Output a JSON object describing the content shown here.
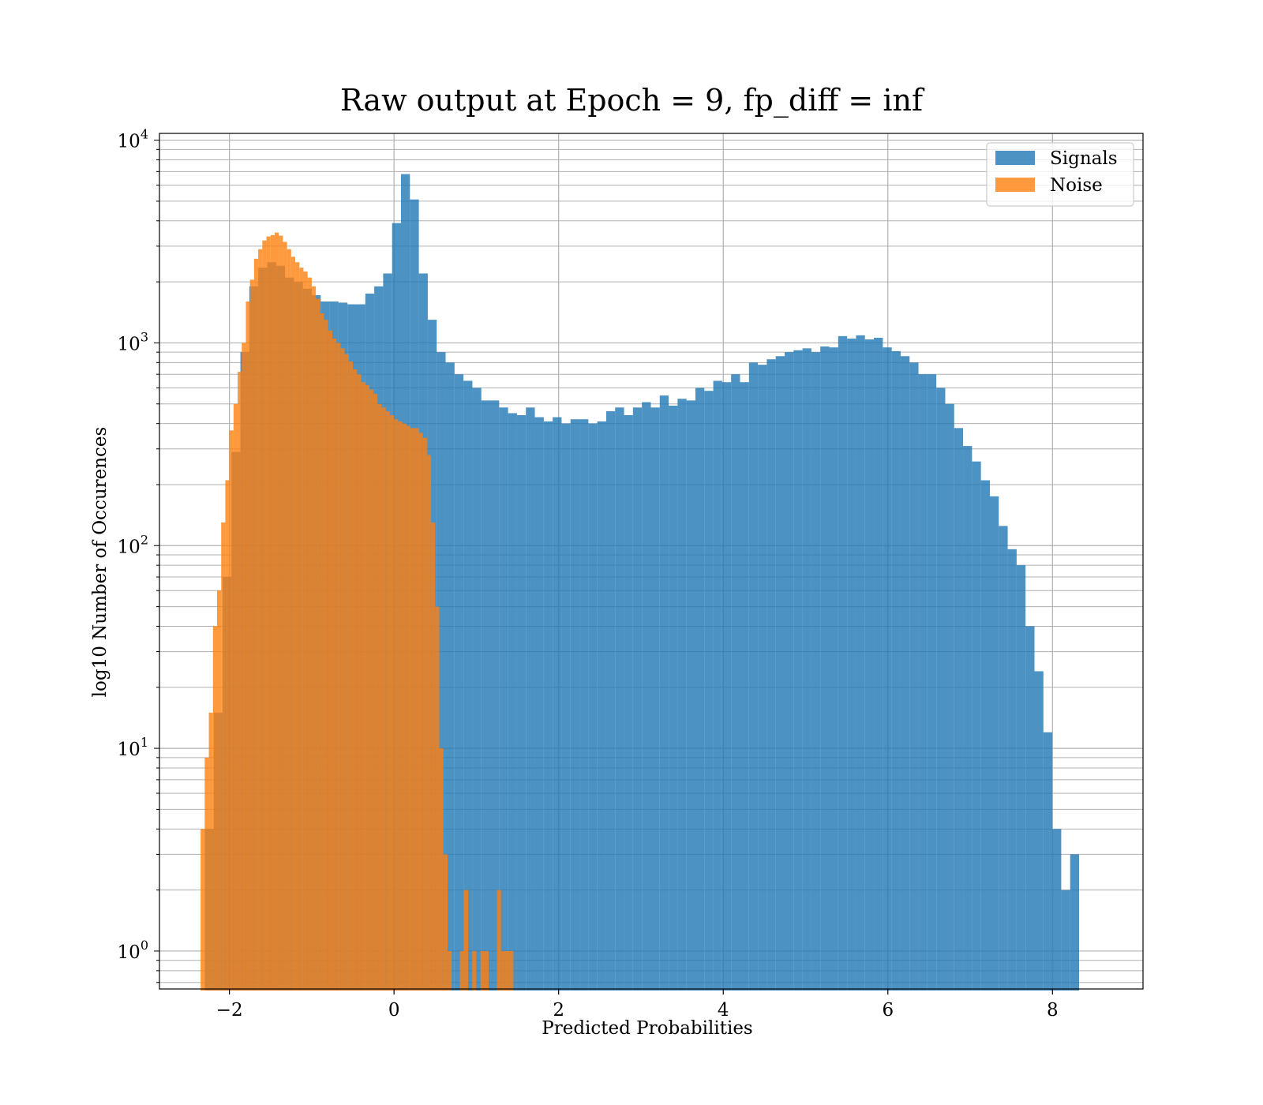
{
  "chart_data": {
    "type": "bar",
    "title": "Raw output at Epoch = 9, fp_diff = inf",
    "xlabel": "Predicted Probabilities",
    "ylabel": "log10 Number of Occurences",
    "xlim": [
      -2.85,
      9.1
    ],
    "ylim": [
      0.65,
      10800
    ],
    "yscale": "log",
    "grid": true,
    "legend_position": "top-right",
    "x_ticks": [
      -2,
      0,
      2,
      4,
      6,
      8
    ],
    "x_tick_labels": [
      "−2",
      "0",
      "2",
      "4",
      "6",
      "8"
    ],
    "y_ticks": [
      1,
      10,
      100,
      1000,
      10000
    ],
    "y_tick_labels": [
      "10^0",
      "10^1",
      "10^2",
      "10^3",
      "10^4"
    ],
    "series": [
      {
        "name": "Signals",
        "color": "#1f77b4",
        "alpha": 0.8,
        "bin_start": -2.3,
        "bin_width": 0.1084,
        "counts": [
          4,
          15,
          70,
          290,
          900,
          1900,
          2350,
          2500,
          2400,
          2100,
          2000,
          1850,
          1720,
          1600,
          1600,
          1580,
          1550,
          1550,
          1750,
          1900,
          2200,
          3900,
          6800,
          5100,
          2200,
          1300,
          900,
          800,
          700,
          650,
          600,
          520,
          520,
          480,
          450,
          440,
          480,
          430,
          410,
          430,
          400,
          420,
          420,
          400,
          410,
          460,
          480,
          440,
          480,
          510,
          480,
          550,
          490,
          530,
          520,
          600,
          580,
          650,
          640,
          700,
          640,
          800,
          780,
          830,
          860,
          900,
          920,
          940,
          900,
          960,
          950,
          1080,
          1050,
          1090,
          1040,
          1060,
          950,
          910,
          860,
          800,
          700,
          700,
          600,
          500,
          380,
          310,
          260,
          210,
          175,
          125,
          96,
          80,
          40,
          24,
          12,
          4,
          2,
          3
        ]
      },
      {
        "name": "Noise",
        "color": "#ff7f0e",
        "alpha": 0.8,
        "bin_start": -2.35,
        "bin_width": 0.05,
        "counts": [
          4,
          9,
          15,
          40,
          60,
          130,
          210,
          370,
          500,
          720,
          1000,
          1600,
          2050,
          2600,
          2900,
          3200,
          3350,
          3400,
          3500,
          3380,
          3150,
          2900,
          2660,
          2500,
          2350,
          2250,
          2100,
          1900,
          1650,
          1400,
          1300,
          1150,
          1050,
          1000,
          940,
          880,
          810,
          740,
          700,
          640,
          620,
          590,
          560,
          500,
          480,
          460,
          440,
          420,
          410,
          400,
          390,
          380,
          380,
          360,
          340,
          280,
          130,
          50,
          10,
          3,
          1,
          0,
          0,
          1,
          2,
          0,
          1,
          0,
          1,
          1,
          0,
          0,
          2,
          1,
          1,
          1
        ]
      }
    ]
  }
}
